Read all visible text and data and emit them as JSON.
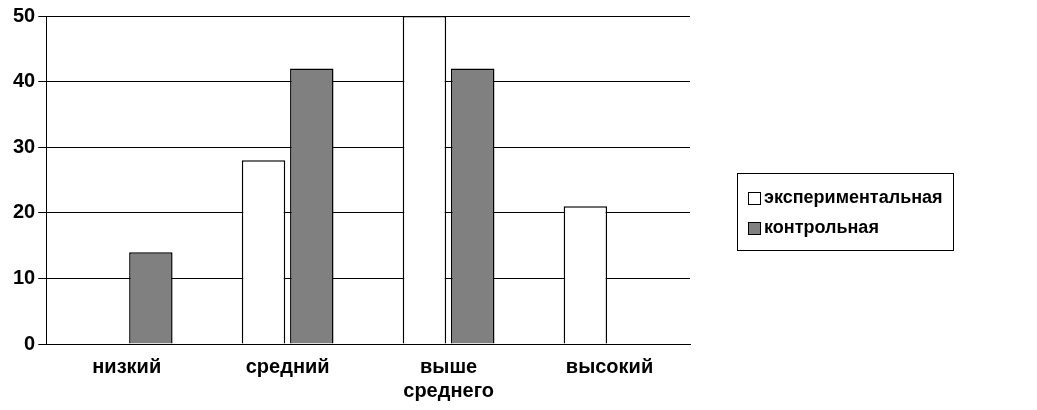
{
  "chart_data": {
    "type": "bar",
    "categories": [
      "низкий",
      "средний",
      "выше среднего",
      "высокий"
    ],
    "series": [
      {
        "name": "экспериментальная",
        "color": "#ffffff",
        "values": [
          0,
          28,
          50,
          21
        ]
      },
      {
        "name": "контрольная",
        "color": "#808080",
        "values": [
          14,
          42,
          42,
          0
        ]
      }
    ],
    "ylim": [
      0,
      50
    ],
    "yticks": [
      0,
      10,
      20,
      30,
      40,
      50
    ],
    "grid": "y",
    "legend": "right"
  }
}
